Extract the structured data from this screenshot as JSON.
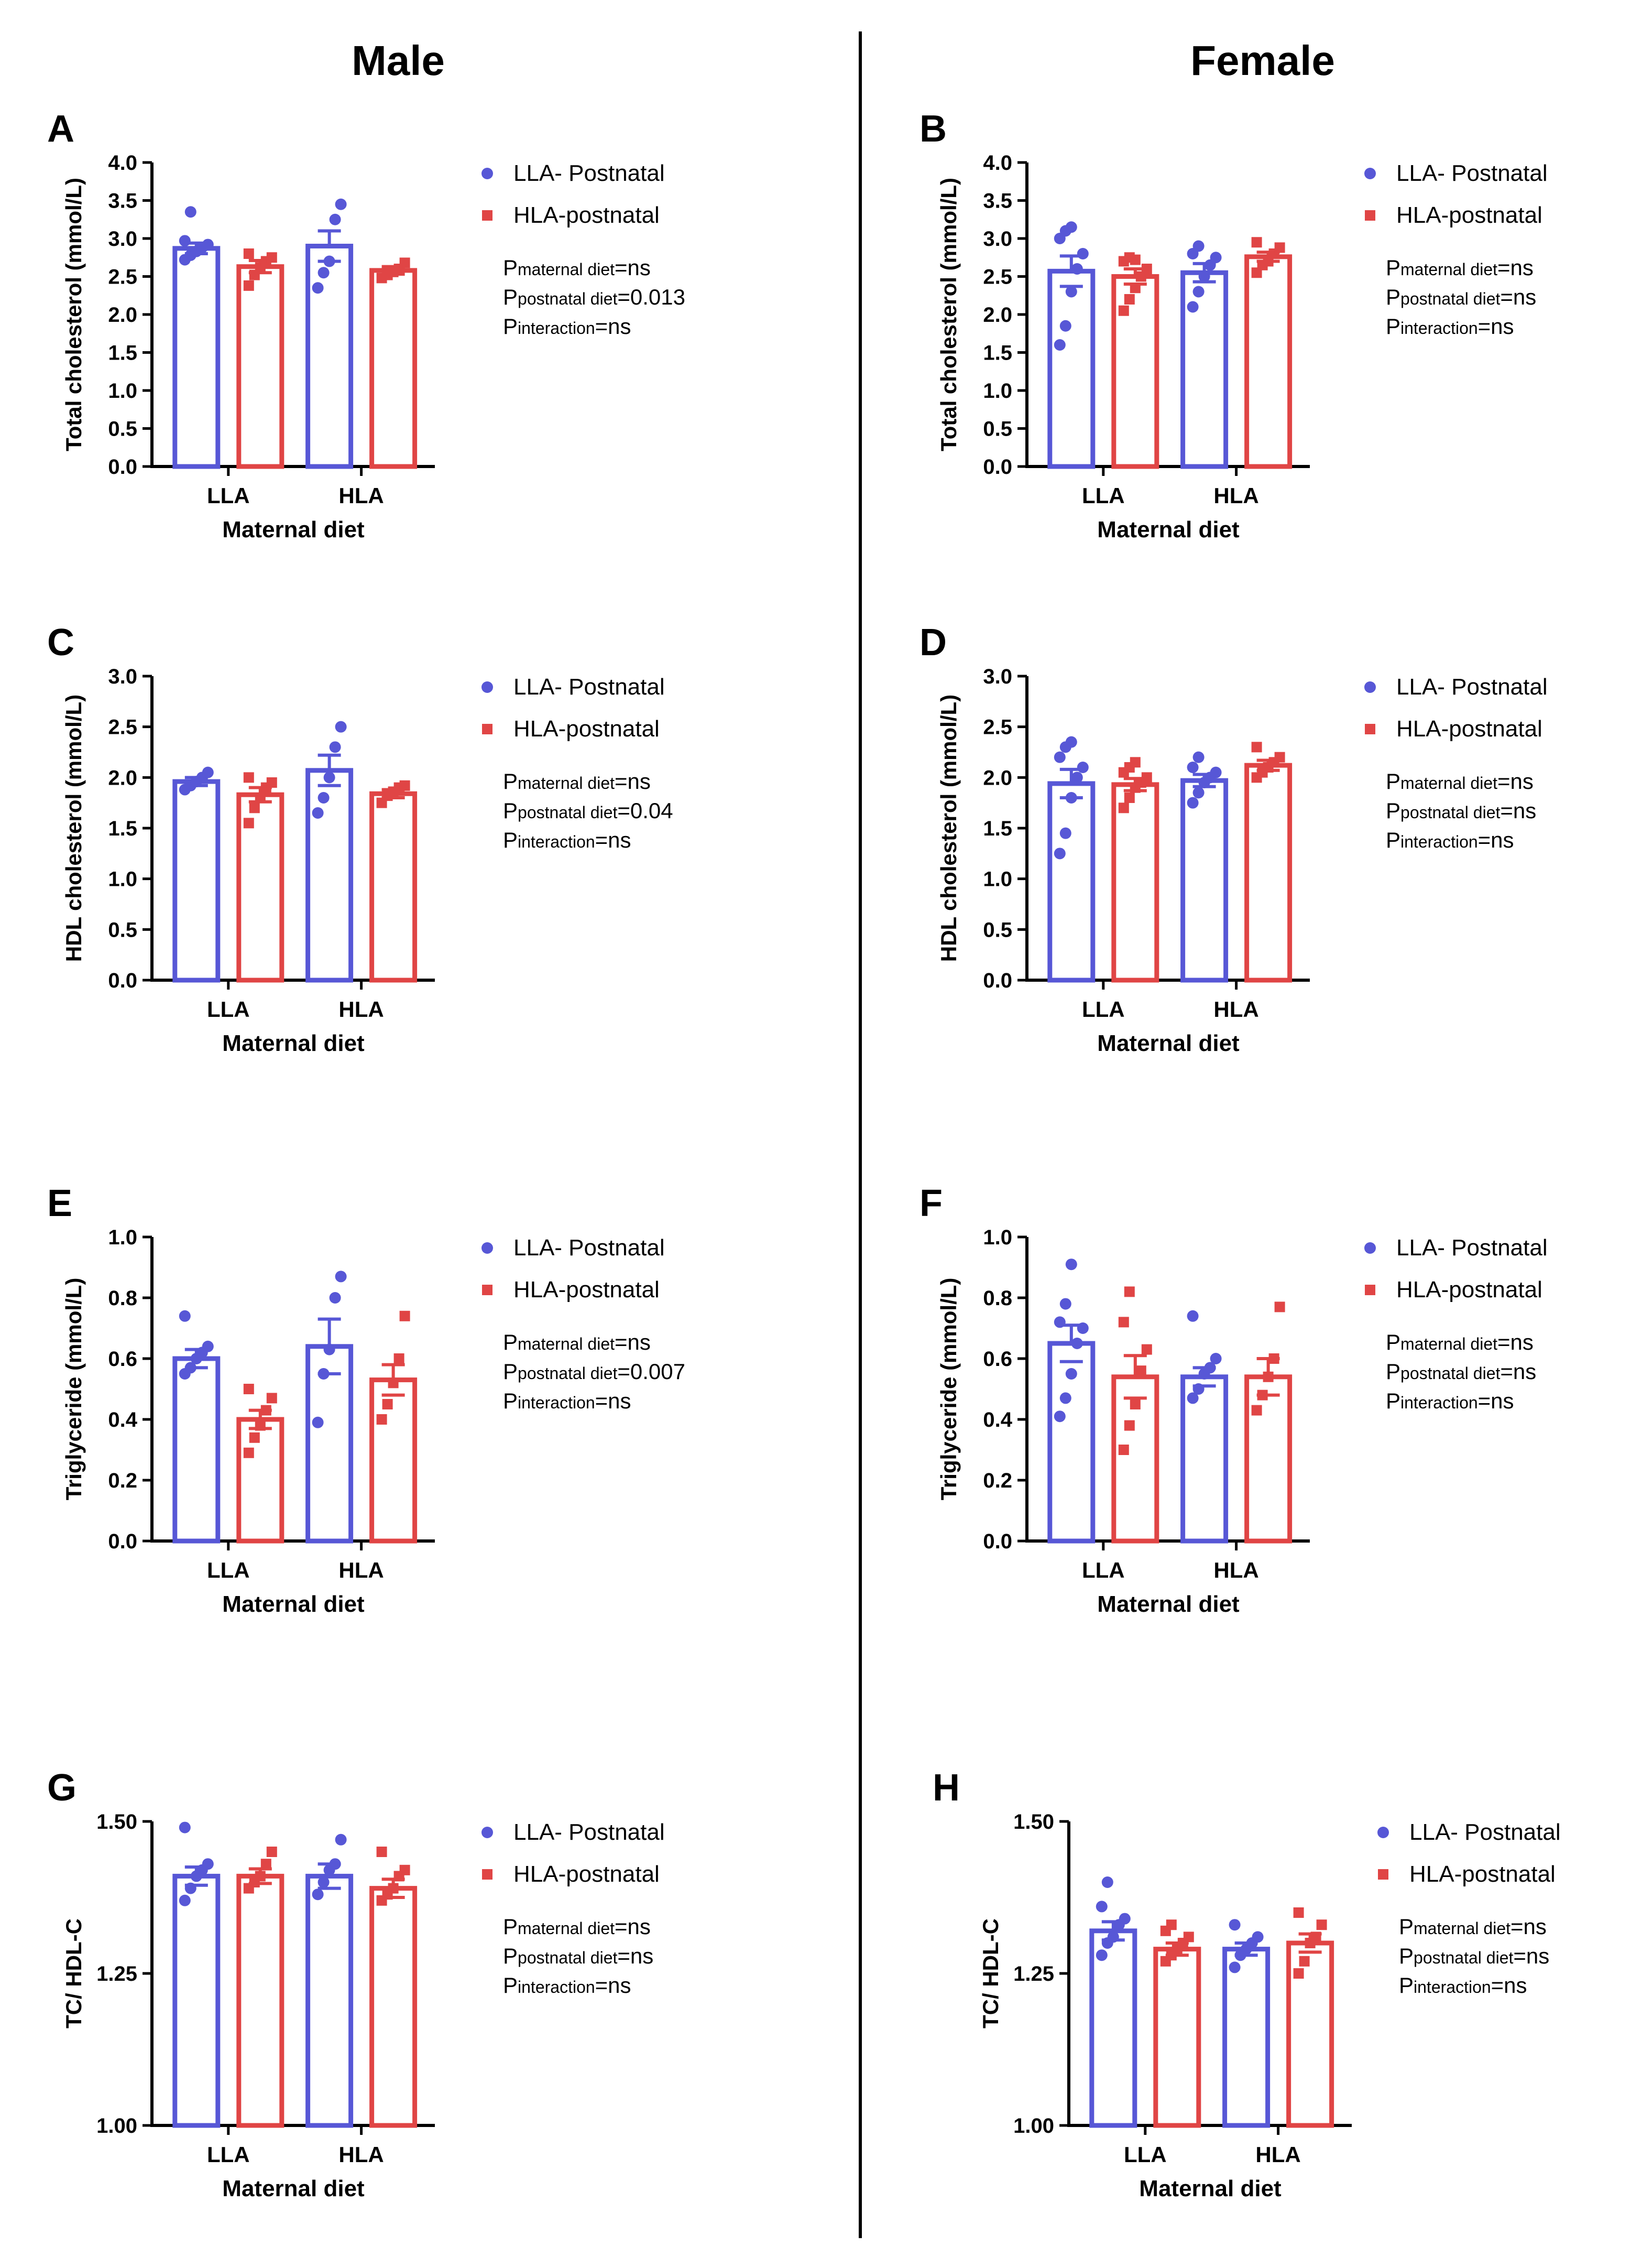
{
  "column_titles": {
    "male": "Male",
    "female": "Female"
  },
  "colors": {
    "llaPostnatal": "#5757d6",
    "hlaPostnatal": "#e04545",
    "axis": "#000000"
  },
  "chart_data": [
    {
      "panel": "A",
      "type": "bar",
      "xlabel": "Maternal diet",
      "ylabel": "Total cholesterol (mmol/L)",
      "categories": [
        "LLA",
        "HLA"
      ],
      "ylim": [
        0,
        4.0
      ],
      "yticks": [
        "0.0",
        "0.5",
        "1.0",
        "1.5",
        "2.0",
        "2.5",
        "3.0",
        "3.5",
        "4.0"
      ],
      "series": [
        {
          "name": "LLA- Postnatal",
          "values": [
            2.87,
            2.9
          ],
          "sem": [
            0.07,
            0.2
          ],
          "points": [
            [
              2.72,
              2.78,
              2.83,
              2.88,
              2.92,
              2.97,
              3.35
            ],
            [
              2.35,
              2.55,
              2.7,
              3.25,
              3.45
            ]
          ]
        },
        {
          "name": "HLA-postnatal",
          "values": [
            2.63,
            2.58
          ],
          "sem": [
            0.08,
            0.05
          ],
          "points": [
            [
              2.38,
              2.52,
              2.62,
              2.7,
              2.75,
              2.8
            ],
            [
              2.48,
              2.52,
              2.56,
              2.6,
              2.68
            ]
          ]
        }
      ],
      "stats": [
        {
          "p": "P",
          "sub": "maternal diet",
          "val": "=ns"
        },
        {
          "p": "P",
          "sub": "postnatal diet",
          "val": "=0.013"
        },
        {
          "p": "P",
          "sub": "interaction",
          "val": "=ns"
        }
      ]
    },
    {
      "panel": "B",
      "type": "bar",
      "xlabel": "Maternal diet",
      "ylabel": "Total cholesterol (mmol/L)",
      "categories": [
        "LLA",
        "HLA"
      ],
      "ylim": [
        0,
        4.0
      ],
      "yticks": [
        "0.0",
        "0.5",
        "1.0",
        "1.5",
        "2.0",
        "2.5",
        "3.0",
        "3.5",
        "4.0"
      ],
      "series": [
        {
          "name": "LLA- Postnatal",
          "values": [
            2.57,
            2.55
          ],
          "sem": [
            0.2,
            0.12
          ],
          "points": [
            [
              1.6,
              1.85,
              2.3,
              2.6,
              2.8,
              3.0,
              3.1,
              3.15
            ],
            [
              2.1,
              2.3,
              2.5,
              2.65,
              2.75,
              2.8,
              2.9
            ]
          ]
        },
        {
          "name": "HLA-postnatal",
          "values": [
            2.5,
            2.76
          ],
          "sem": [
            0.1,
            0.06
          ],
          "points": [
            [
              2.05,
              2.2,
              2.35,
              2.5,
              2.6,
              2.7,
              2.75,
              2.72
            ],
            [
              2.55,
              2.65,
              2.7,
              2.8,
              2.88,
              2.95
            ]
          ]
        }
      ],
      "stats": [
        {
          "p": "P",
          "sub": "maternal diet",
          "val": "=ns"
        },
        {
          "p": "P",
          "sub": "postnatal diet",
          "val": "=ns"
        },
        {
          "p": "P",
          "sub": "interaction",
          "val": "=ns"
        }
      ]
    },
    {
      "panel": "C",
      "type": "bar",
      "xlabel": "Maternal diet",
      "ylabel": "HDL cholesterol (mmol/L)",
      "categories": [
        "LLA",
        "HLA"
      ],
      "ylim": [
        0,
        3.0
      ],
      "yticks": [
        "0.0",
        "0.5",
        "1.0",
        "1.5",
        "2.0",
        "2.5",
        "3.0"
      ],
      "series": [
        {
          "name": "LLA- Postnatal",
          "values": [
            1.96,
            2.07
          ],
          "sem": [
            0.04,
            0.15
          ],
          "points": [
            [
              1.88,
              1.92,
              1.96,
              2.0,
              2.05
            ],
            [
              1.65,
              1.8,
              2.0,
              2.3,
              2.5
            ]
          ]
        },
        {
          "name": "HLA-postnatal",
          "values": [
            1.83,
            1.84
          ],
          "sem": [
            0.07,
            0.04
          ],
          "points": [
            [
              1.55,
              1.7,
              1.8,
              1.9,
              1.95,
              2.0
            ],
            [
              1.75,
              1.82,
              1.86,
              1.9,
              1.92
            ]
          ]
        }
      ],
      "stats": [
        {
          "p": "P",
          "sub": "maternal diet",
          "val": "=ns"
        },
        {
          "p": "P",
          "sub": "postnatal diet",
          "val": "=0.04"
        },
        {
          "p": "P",
          "sub": "interaction",
          "val": "=ns"
        }
      ]
    },
    {
      "panel": "D",
      "type": "bar",
      "xlabel": "Maternal diet",
      "ylabel": "HDL cholesterol (mmol/L)",
      "categories": [
        "LLA",
        "HLA"
      ],
      "ylim": [
        0,
        3.0
      ],
      "yticks": [
        "0.0",
        "0.5",
        "1.0",
        "1.5",
        "2.0",
        "2.5",
        "3.0"
      ],
      "series": [
        {
          "name": "LLA- Postnatal",
          "values": [
            1.94,
            1.97
          ],
          "sem": [
            0.14,
            0.06
          ],
          "points": [
            [
              1.25,
              1.45,
              1.8,
              2.0,
              2.1,
              2.2,
              2.3,
              2.35
            ],
            [
              1.75,
              1.85,
              1.95,
              2.0,
              2.05,
              2.1,
              2.2
            ]
          ]
        },
        {
          "name": "HLA-postnatal",
          "values": [
            1.93,
            2.12
          ],
          "sem": [
            0.06,
            0.05
          ],
          "points": [
            [
              1.7,
              1.8,
              1.9,
              1.95,
              2.0,
              2.05,
              2.1,
              2.15
            ],
            [
              2.0,
              2.05,
              2.1,
              2.15,
              2.2,
              2.3
            ]
          ]
        }
      ],
      "stats": [
        {
          "p": "P",
          "sub": "maternal diet",
          "val": "=ns"
        },
        {
          "p": "P",
          "sub": "postnatal diet",
          "val": "=ns"
        },
        {
          "p": "P",
          "sub": "interaction",
          "val": "=ns"
        }
      ]
    },
    {
      "panel": "E",
      "type": "bar",
      "xlabel": "Maternal diet",
      "ylabel": "Triglyceride (mmol/L)",
      "categories": [
        "LLA",
        "HLA"
      ],
      "ylim": [
        0,
        1.0
      ],
      "yticks": [
        "0.0",
        "0.2",
        "0.4",
        "0.6",
        "0.8",
        "1.0"
      ],
      "series": [
        {
          "name": "LLA- Postnatal",
          "values": [
            0.6,
            0.64
          ],
          "sem": [
            0.03,
            0.09
          ],
          "points": [
            [
              0.55,
              0.57,
              0.6,
              0.62,
              0.64,
              0.74
            ],
            [
              0.39,
              0.55,
              0.63,
              0.8,
              0.87
            ]
          ]
        },
        {
          "name": "HLA-postnatal",
          "values": [
            0.4,
            0.53
          ],
          "sem": [
            0.03,
            0.05
          ],
          "points": [
            [
              0.29,
              0.34,
              0.38,
              0.43,
              0.47,
              0.5
            ],
            [
              0.4,
              0.45,
              0.52,
              0.6,
              0.74
            ]
          ]
        }
      ],
      "stats": [
        {
          "p": "P",
          "sub": "maternal diet",
          "val": "=ns"
        },
        {
          "p": "P",
          "sub": "postnatal diet",
          "val": "=0.007"
        },
        {
          "p": "P",
          "sub": "interaction",
          "val": "=ns"
        }
      ]
    },
    {
      "panel": "F",
      "type": "bar",
      "xlabel": "Maternal diet",
      "ylabel": "Triglyceride (mmol/L)",
      "categories": [
        "LLA",
        "HLA"
      ],
      "ylim": [
        0,
        1.0
      ],
      "yticks": [
        "0.0",
        "0.2",
        "0.4",
        "0.6",
        "0.8",
        "1.0"
      ],
      "series": [
        {
          "name": "LLA- Postnatal",
          "values": [
            0.65,
            0.54
          ],
          "sem": [
            0.06,
            0.03
          ],
          "points": [
            [
              0.41,
              0.47,
              0.55,
              0.65,
              0.7,
              0.72,
              0.78,
              0.91
            ],
            [
              0.47,
              0.5,
              0.55,
              0.57,
              0.6,
              0.74
            ]
          ]
        },
        {
          "name": "HLA-postnatal",
          "values": [
            0.54,
            0.54
          ],
          "sem": [
            0.07,
            0.06
          ],
          "points": [
            [
              0.3,
              0.38,
              0.45,
              0.56,
              0.63,
              0.72,
              0.82
            ],
            [
              0.43,
              0.48,
              0.54,
              0.6,
              0.77
            ]
          ]
        }
      ],
      "stats": [
        {
          "p": "P",
          "sub": "maternal diet",
          "val": "=ns"
        },
        {
          "p": "P",
          "sub": "postnatal diet",
          "val": "=ns"
        },
        {
          "p": "P",
          "sub": "interaction",
          "val": "=ns"
        }
      ]
    },
    {
      "panel": "G",
      "type": "bar",
      "xlabel": "Maternal diet",
      "ylabel": "TC/ HDL-C",
      "categories": [
        "LLA",
        "HLA"
      ],
      "ylim": [
        1.0,
        1.5
      ],
      "yticks": [
        "1.00",
        "1.25",
        "1.50"
      ],
      "series": [
        {
          "name": "LLA- Postnatal",
          "values": [
            1.41,
            1.41
          ],
          "sem": [
            0.015,
            0.02
          ],
          "points": [
            [
              1.37,
              1.39,
              1.41,
              1.42,
              1.43,
              1.49
            ],
            [
              1.38,
              1.4,
              1.42,
              1.43,
              1.47
            ]
          ]
        },
        {
          "name": "HLA-postnatal",
          "values": [
            1.41,
            1.39
          ],
          "sem": [
            0.012,
            0.015
          ],
          "points": [
            [
              1.39,
              1.4,
              1.41,
              1.43,
              1.45
            ],
            [
              1.37,
              1.38,
              1.39,
              1.41,
              1.42,
              1.45
            ]
          ]
        }
      ],
      "stats": [
        {
          "p": "P",
          "sub": "maternal diet",
          "val": "=ns"
        },
        {
          "p": "P",
          "sub": "postnatal diet",
          "val": "=ns"
        },
        {
          "p": "P",
          "sub": "interaction",
          "val": "=ns"
        }
      ]
    },
    {
      "panel": "H",
      "type": "bar",
      "xlabel": "Maternal diet",
      "ylabel": "TC/ HDL-C",
      "categories": [
        "LLA",
        "HLA"
      ],
      "ylim": [
        1.0,
        1.5
      ],
      "yticks": [
        "1.00",
        "1.25",
        "1.50"
      ],
      "series": [
        {
          "name": "LLA- Postnatal",
          "values": [
            1.32,
            1.29
          ],
          "sem": [
            0.015,
            0.01
          ],
          "points": [
            [
              1.28,
              1.3,
              1.31,
              1.33,
              1.34,
              1.36,
              1.4
            ],
            [
              1.26,
              1.28,
              1.29,
              1.3,
              1.31,
              1.33
            ]
          ]
        },
        {
          "name": "HLA-postnatal",
          "values": [
            1.29,
            1.3
          ],
          "sem": [
            0.01,
            0.015
          ],
          "points": [
            [
              1.27,
              1.28,
              1.29,
              1.3,
              1.31,
              1.32,
              1.33
            ],
            [
              1.25,
              1.27,
              1.3,
              1.31,
              1.33,
              1.35
            ]
          ]
        }
      ],
      "stats": [
        {
          "p": "P",
          "sub": "maternal diet",
          "val": "=ns"
        },
        {
          "p": "P",
          "sub": "postnatal diet",
          "val": "=ns"
        },
        {
          "p": "P",
          "sub": "interaction",
          "val": "=ns"
        }
      ]
    }
  ]
}
